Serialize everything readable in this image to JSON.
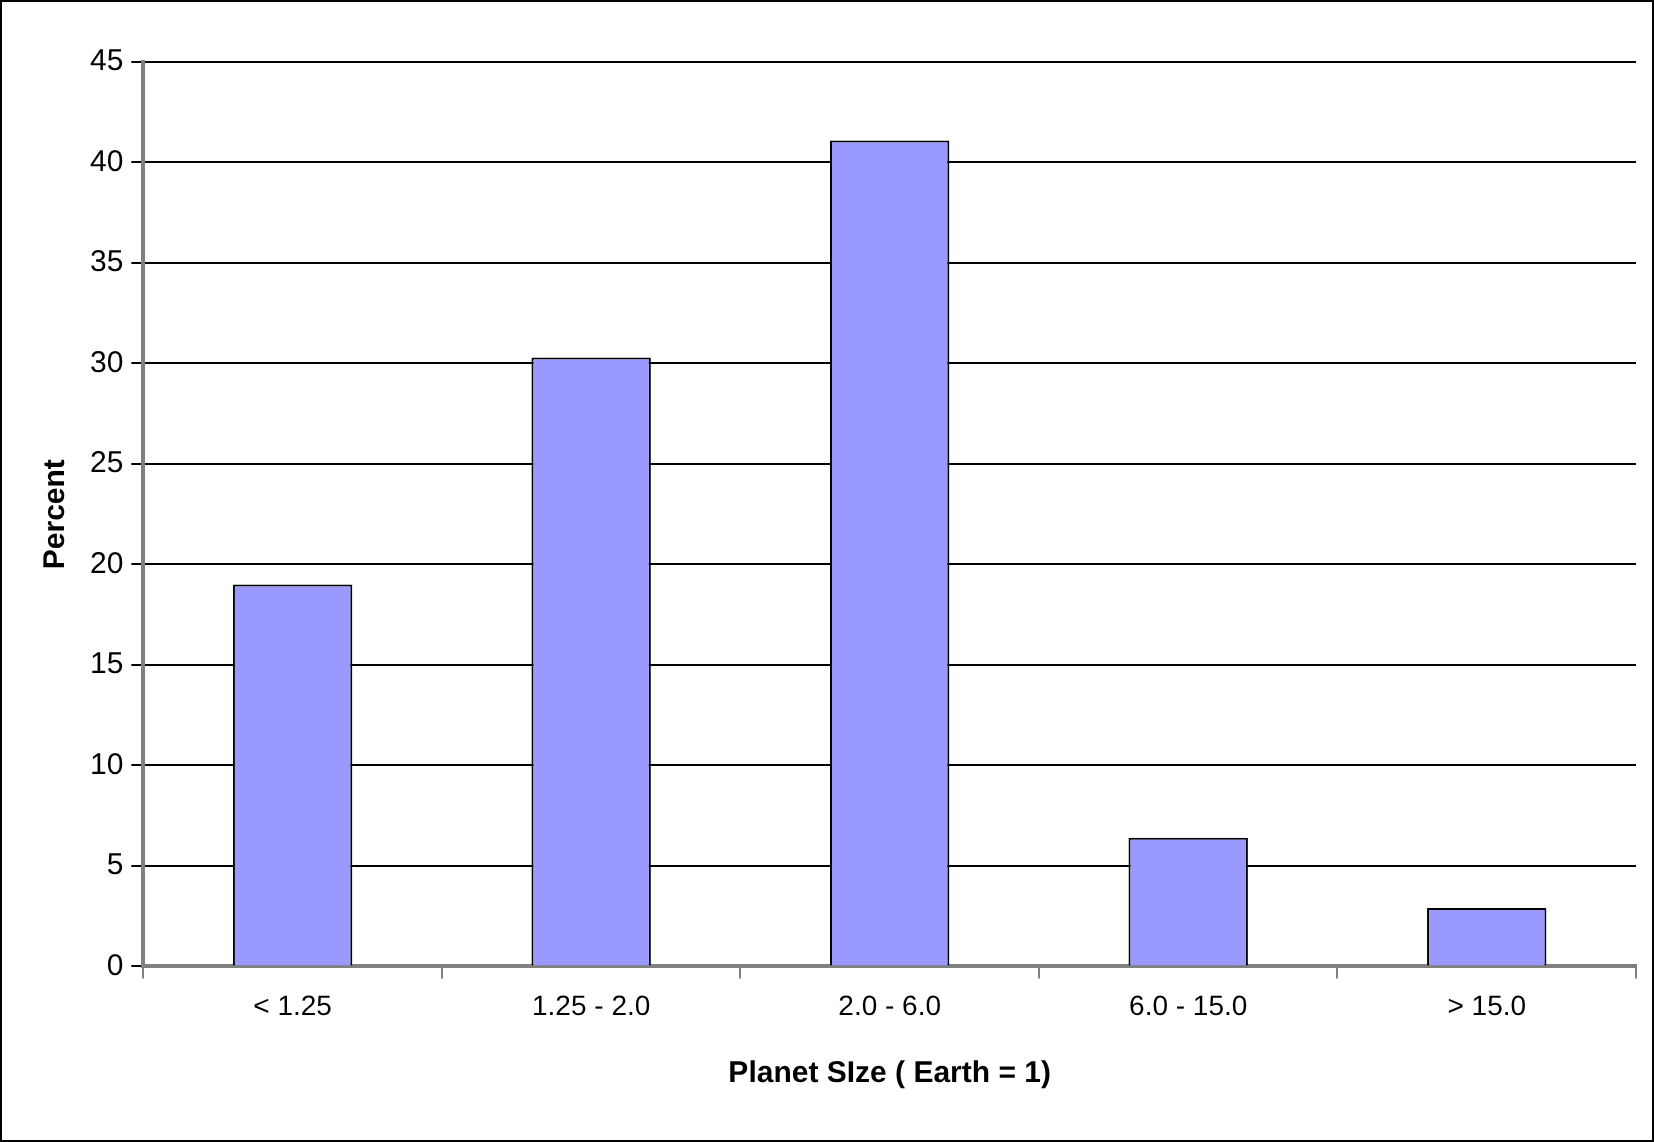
{
  "chart_data": {
    "type": "bar",
    "xlabel": "Planet SIze ( Earth = 1)",
    "ylabel": "Percent",
    "categories": [
      "< 1.25",
      "1.25 - 2.0",
      "2.0 - 6.0",
      "6.0 - 15.0",
      "> 15.0"
    ],
    "values": [
      19.0,
      30.3,
      41.1,
      6.4,
      2.9
    ],
    "color": "#9999ff",
    "ylim": [
      0,
      45
    ],
    "yticks": [
      0,
      5,
      10,
      15,
      20,
      25,
      30,
      35,
      40,
      45
    ],
    "grid": "y",
    "legend": false
  }
}
